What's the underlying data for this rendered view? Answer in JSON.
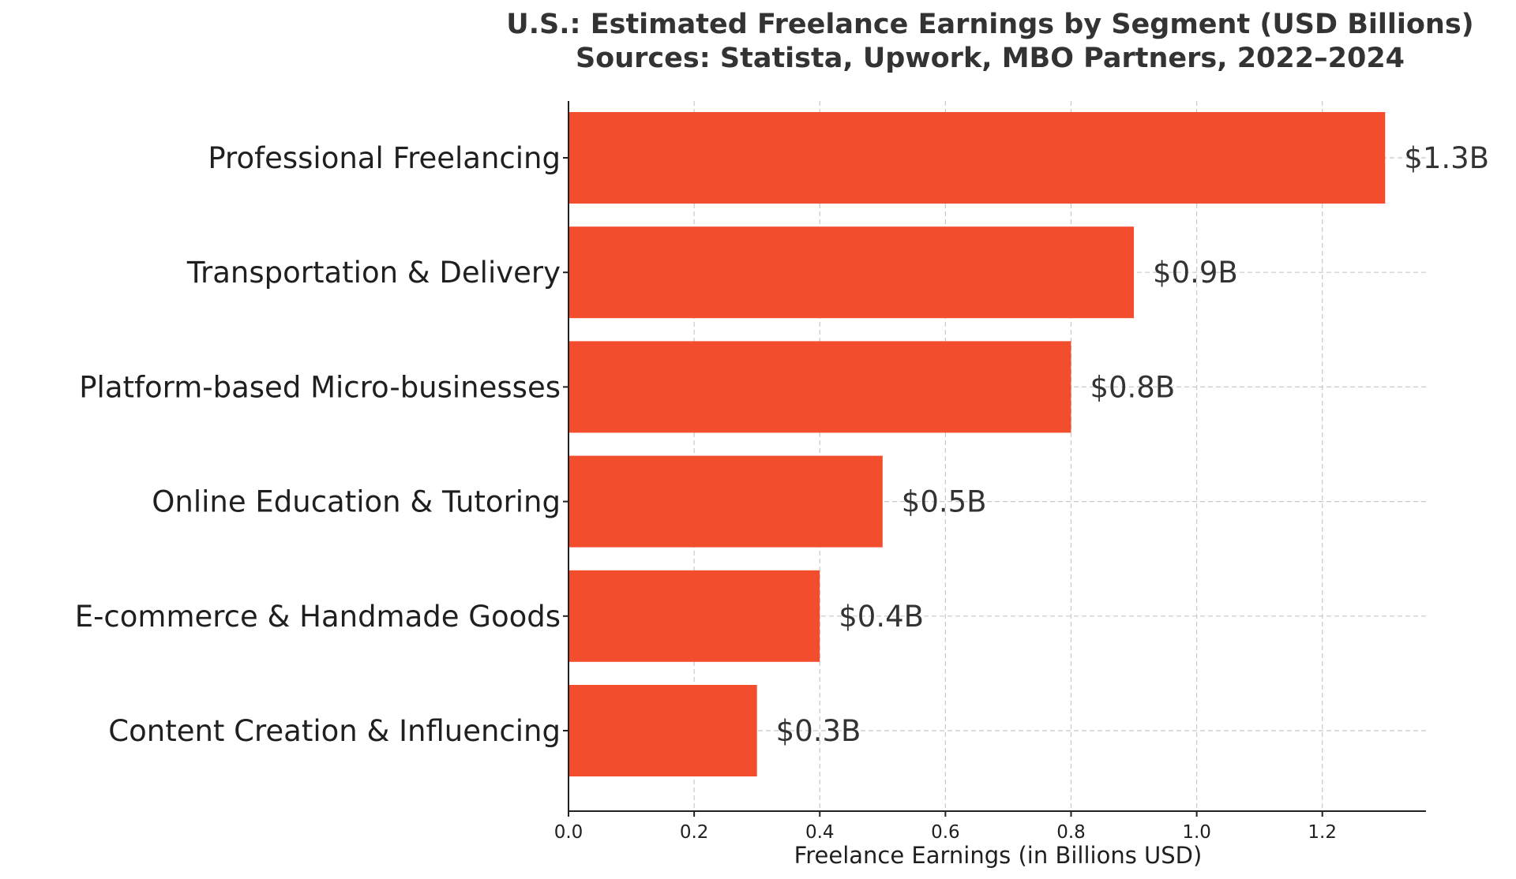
{
  "chart_data": {
    "type": "bar",
    "orientation": "horizontal",
    "title": "U.S.: Estimated Freelance Earnings by Segment (USD Billions)",
    "subtitle": "Sources: Statista, Upwork, MBO Partners, 2022–2024",
    "xlabel": "Freelance Earnings (in Billions USD)",
    "ylabel": "",
    "categories": [
      "Professional Freelancing",
      "Transportation & Delivery",
      "Platform-based Micro-businesses",
      "Online Education & Tutoring",
      "E-commerce & Handmade Goods",
      "Content Creation & Influencing"
    ],
    "values": [
      1.3,
      0.9,
      0.8,
      0.5,
      0.4,
      0.3
    ],
    "value_labels": [
      "$1.3B",
      "$0.9B",
      "$0.8B",
      "$0.5B",
      "$0.4B",
      "$0.3B"
    ],
    "xlim": [
      0,
      1.365
    ],
    "xticks": [
      0.0,
      0.2,
      0.4,
      0.6,
      0.8,
      1.0,
      1.2
    ],
    "xtick_labels": [
      "0.0",
      "0.2",
      "0.4",
      "0.6",
      "0.8",
      "1.0",
      "1.2"
    ],
    "grid": true,
    "bar_color": "#f24e2e"
  }
}
